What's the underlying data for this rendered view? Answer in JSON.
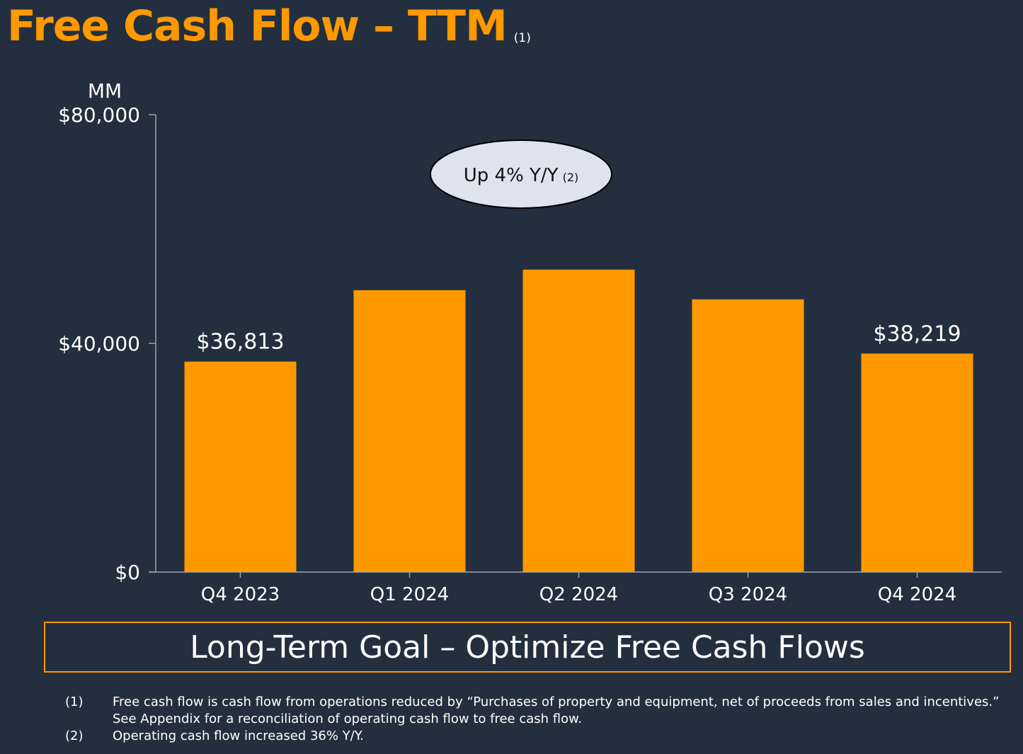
{
  "title": {
    "text": "Free Cash Flow – TTM",
    "footnote_ref": "(1)"
  },
  "chart_data": {
    "type": "bar",
    "unit_label": "MM",
    "categories": [
      "Q4 2023",
      "Q1 2024",
      "Q2 2024",
      "Q3 2024",
      "Q4 2024"
    ],
    "values": [
      36813,
      49300,
      52900,
      47700,
      38219
    ],
    "data_labels": [
      "$36,813",
      "",
      "",
      "",
      "$38,219"
    ],
    "y_ticks": [
      {
        "value": 0,
        "label": "$0"
      },
      {
        "value": 40000,
        "label": "$40,000"
      },
      {
        "value": 80000,
        "label": "$80,000"
      }
    ],
    "ylim": [
      0,
      80000
    ],
    "bar_color": "#ff9900",
    "annotation": {
      "text": "Up 4% Y/Y",
      "footnote_ref": "(2)",
      "fill": "#dde4f0"
    }
  },
  "goal_banner": "Long-Term Goal – Optimize Free Cash Flows",
  "footnotes": [
    {
      "num": "(1)",
      "lines": [
        "Free cash flow is cash flow from operations reduced by “Purchases of property and equipment, net of proceeds from sales and incentives.”",
        "See Appendix for a reconciliation of operating cash flow to free cash flow."
      ]
    },
    {
      "num": "(2)",
      "lines": [
        "Operating cash flow increased 36% Y/Y."
      ]
    }
  ],
  "colors": {
    "background": "#232f3e",
    "accent": "#ff9900",
    "text": "#ffffff",
    "axis": "#9aa3ad"
  }
}
